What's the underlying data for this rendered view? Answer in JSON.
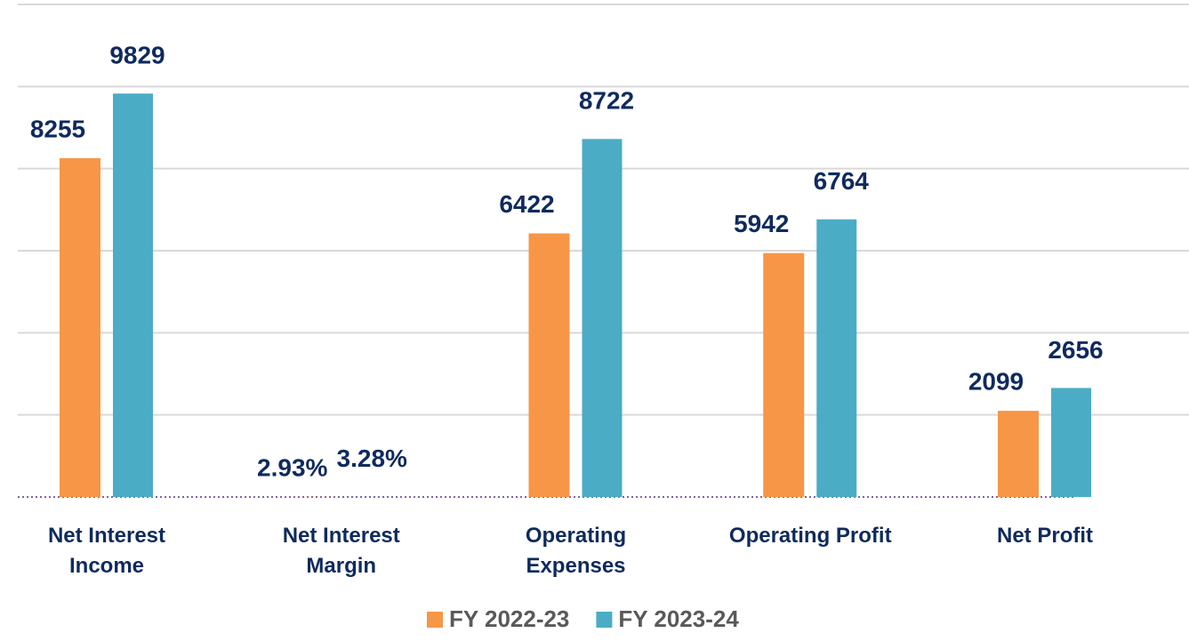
{
  "chart_data": {
    "type": "bar",
    "categories": [
      "Net Interest Income",
      "Net Interest Margin",
      "Operating Expenses",
      "Operating Profit",
      "Net Profit"
    ],
    "series": [
      {
        "name": "FY 2022-23",
        "color": "#f79646",
        "values": [
          8255,
          2.93,
          6422,
          5942,
          2099
        ],
        "value_labels": [
          "8255",
          "2.93%",
          "6422",
          "5942",
          "2099"
        ]
      },
      {
        "name": "FY 2023-24",
        "color": "#4bacc6",
        "values": [
          9829,
          3.28,
          8722,
          6764,
          2656
        ],
        "value_labels": [
          "9829",
          "3.28%",
          "8722",
          "6764",
          "2656"
        ]
      }
    ],
    "ylim": [
      0,
      12000
    ],
    "yticks": [
      0,
      2000,
      4000,
      6000,
      8000,
      10000,
      12000
    ],
    "grid": true,
    "legend": "bottom"
  }
}
